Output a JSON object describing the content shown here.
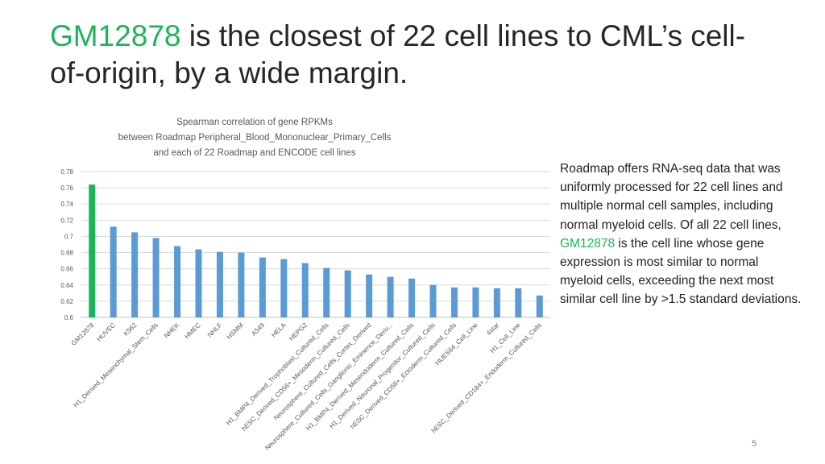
{
  "slide": {
    "title_highlight": "GM12878",
    "title_rest": " is the closest of 22 cell lines to CML’s cell-of-origin, by a wide margin.",
    "body_part1": "Roadmap offers RNA-seq data that was uniformly processed for 22 cell lines and multiple normal cell samples, including normal myeloid cells. Of all 22 cell lines, ",
    "body_highlight": "GM12878",
    "body_part2": " is the cell line whose gene expression is most similar to normal myeloid cells, exceeding the next most similar cell line by >1.5 standard deviations.",
    "page_number": "5",
    "accent_color": "#1db35a"
  },
  "chart_data": {
    "type": "bar",
    "title_lines": [
      "Spearman correlation of gene RPKMs",
      "between Roadmap Peripheral_Blood_Mononuclear_Primary_Cells",
      "and each of 22 Roadmap and ENCODE cell lines"
    ],
    "categories": [
      "GM12878",
      "HUVEC",
      "K562",
      "H1_Derived_Mesenchymal_Stem_Cells",
      "NHEK",
      "HMEC",
      "NHLF",
      "HSMM",
      "A549",
      "HELA",
      "HEPG2",
      "H1_BMP4_Derived_Trophoblast_Cultured_Cells",
      "hESC_Derived_CD56+_Mesoderm_Cultured_Cells",
      "Neurosphere_Cultured_Cells_Cortex_Derived",
      "Neurosphere_Cultured_Cells_Ganglionic_Eminence_Deriv...",
      "H1_BMP4_Derived_Mesendoderm_Cultured_Cells",
      "H1_Derived_Neuronal_Progenitor_Cultured_Cells",
      "hESC_Derived_CD56+_Ectoderm_Cultured_Cells",
      "HUES64_Cell_Line",
      "4star",
      "H1_Cell_Line",
      "hESC_Derived_CD184+_Endoderm_Cultured_Cells"
    ],
    "values": [
      0.764,
      0.712,
      0.705,
      0.698,
      0.688,
      0.684,
      0.681,
      0.68,
      0.674,
      0.672,
      0.667,
      0.661,
      0.658,
      0.653,
      0.65,
      0.648,
      0.64,
      0.637,
      0.637,
      0.636,
      0.636,
      0.627
    ],
    "highlight_index": 0,
    "highlight_color": "#1db35a",
    "bar_color": "#5b9bd5",
    "grid_color": "#d9d9d9",
    "ylim": [
      0.6,
      0.78
    ],
    "yticks": [
      "0.6",
      "0.62",
      "0.64",
      "0.66",
      "0.68",
      "0.7",
      "0.72",
      "0.74",
      "0.76",
      "0.78"
    ],
    "grid": true
  }
}
